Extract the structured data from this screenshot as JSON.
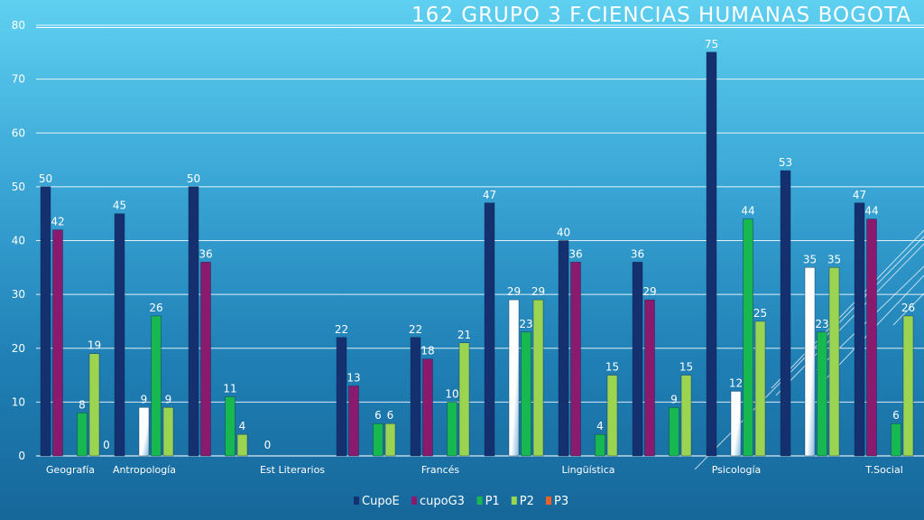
{
  "chart_data": {
    "type": "bar",
    "title": "162  GRUPO 3  F.CIENCIAS HUMANAS  BOGOTA",
    "ylim": [
      0,
      80
    ],
    "yticks": [
      "0",
      "10",
      "20",
      "30",
      "40",
      "50",
      "60",
      "70",
      "80"
    ],
    "grid": true,
    "legend_position": "bottom",
    "categories": [
      "Geografía",
      "Antropología",
      "",
      "Est Literarios",
      "",
      "Francés",
      "",
      "Lingüística",
      "",
      "Psicología",
      "",
      "T.Social"
    ],
    "category_labels": [
      "Geografía",
      "Antropología",
      "Est Literarios",
      "Francés",
      "Lingüística",
      "Psicología",
      "T.Social"
    ],
    "series": [
      {
        "name": "CupoE",
        "color": "#14306e",
        "values": [
          50,
          45,
          50,
          null,
          22,
          22,
          47,
          40,
          36,
          75,
          53,
          47
        ]
      },
      {
        "name": "cupoG3",
        "color": "#8a1a6e",
        "values": [
          42,
          null,
          36,
          null,
          13,
          18,
          null,
          36,
          29,
          null,
          null,
          44
        ]
      },
      {
        "name": "P3",
        "color": "#e8622a",
        "values": [
          null,
          9,
          null,
          null,
          null,
          null,
          29,
          null,
          null,
          12,
          35,
          null
        ]
      },
      {
        "name": "P1",
        "color": "#18b850",
        "values": [
          8,
          26,
          11,
          null,
          6,
          10,
          23,
          4,
          9,
          44,
          23,
          6
        ]
      },
      {
        "name": "P2",
        "color": "#9ad450",
        "values": [
          19,
          9,
          4,
          null,
          6,
          21,
          29,
          15,
          15,
          25,
          35,
          26
        ]
      }
    ],
    "extra_labels": [
      {
        "category_index": 0,
        "slot": 5,
        "text": "0"
      },
      {
        "category_index": 3,
        "slot": 0,
        "text": "0"
      }
    ],
    "legend": [
      {
        "name": "CupoE",
        "color": "#14306e"
      },
      {
        "name": "cupoG3",
        "color": "#8a1a6e"
      },
      {
        "name": "P1",
        "color": "#18b850"
      },
      {
        "name": "P2",
        "color": "#9ad450"
      },
      {
        "name": "P3",
        "color": "#e8622a"
      }
    ]
  }
}
